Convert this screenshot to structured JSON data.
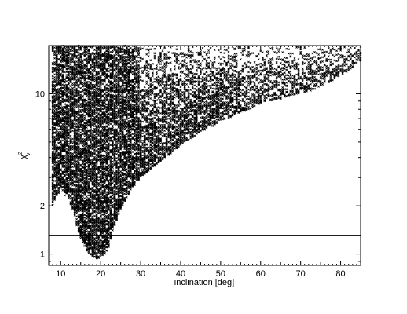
{
  "chart_data": {
    "type": "scatter",
    "title": "",
    "xlabel": "inclination [deg]",
    "ylabel_base": "χ",
    "ylabel_sup": "2",
    "ylabel_sub": "ν",
    "xlim": [
      7,
      85
    ],
    "ylim": [
      0.85,
      20
    ],
    "yscale": "log",
    "grid": false,
    "legend": "none",
    "marker": "x",
    "x_ticks_major": [
      10,
      20,
      30,
      40,
      50,
      60,
      70,
      80
    ],
    "x_tick_labels": [
      "10",
      "20",
      "30",
      "40",
      "50",
      "60",
      "70",
      "80"
    ],
    "y_ticks_labeled": [
      1,
      2,
      10
    ],
    "y_tick_labels": [
      "1",
      "2",
      "10"
    ],
    "horizontal_line": {
      "y": 1.3
    },
    "lower_envelope": {
      "x": [
        7,
        8,
        9,
        10,
        11,
        12,
        13,
        14,
        15,
        16,
        17,
        18,
        19,
        20,
        21,
        22,
        23,
        24,
        25,
        26,
        28,
        30,
        32,
        35,
        38,
        40,
        43,
        45,
        48,
        50,
        53,
        55,
        58,
        60,
        63,
        65,
        68,
        70,
        73,
        75,
        78,
        80,
        83,
        85
      ],
      "y_min": [
        3.0,
        2.0,
        2.3,
        2.5,
        2.3,
        2.2,
        1.9,
        1.5,
        1.25,
        1.1,
        1.0,
        0.97,
        0.93,
        0.96,
        1.0,
        1.1,
        1.4,
        1.6,
        1.9,
        2.1,
        2.6,
        3.0,
        3.3,
        3.8,
        4.3,
        4.8,
        5.3,
        5.8,
        6.3,
        6.8,
        7.2,
        7.6,
        8.2,
        8.6,
        9.0,
        9.3,
        9.8,
        10.0,
        10.5,
        11.0,
        12.0,
        13.0,
        14.5,
        16.0
      ]
    }
  }
}
